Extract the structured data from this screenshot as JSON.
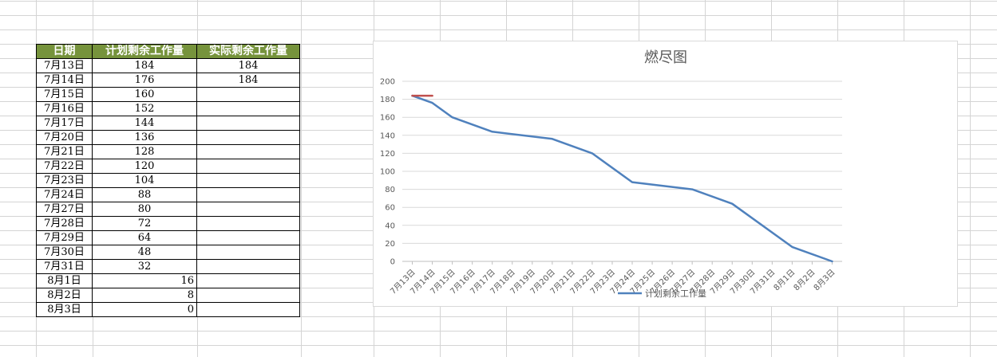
{
  "table": {
    "headers": [
      "日期",
      "计划剩余工作量",
      "实际剩余工作量"
    ],
    "rows": [
      {
        "date": "7月13日",
        "plan": "184",
        "actual": "184"
      },
      {
        "date": "7月14日",
        "plan": "176",
        "actual": "184"
      },
      {
        "date": "7月15日",
        "plan": "160",
        "actual": ""
      },
      {
        "date": "7月16日",
        "plan": "152",
        "actual": ""
      },
      {
        "date": "7月17日",
        "plan": "144",
        "actual": ""
      },
      {
        "date": "7月20日",
        "plan": "136",
        "actual": ""
      },
      {
        "date": "7月21日",
        "plan": "128",
        "actual": ""
      },
      {
        "date": "7月22日",
        "plan": "120",
        "actual": ""
      },
      {
        "date": "7月23日",
        "plan": "104",
        "actual": ""
      },
      {
        "date": "7月24日",
        "plan": "88",
        "actual": ""
      },
      {
        "date": "7月27日",
        "plan": "80",
        "actual": ""
      },
      {
        "date": "7月28日",
        "plan": "72",
        "actual": ""
      },
      {
        "date": "7月29日",
        "plan": "64",
        "actual": ""
      },
      {
        "date": "7月30日",
        "plan": "48",
        "actual": ""
      },
      {
        "date": "7月31日",
        "plan": "32",
        "actual": ""
      },
      {
        "date": "8月1日",
        "plan": "16",
        "actual": ""
      },
      {
        "date": "8月2日",
        "plan": "8",
        "actual": ""
      },
      {
        "date": "8月3日",
        "plan": "0",
        "actual": ""
      }
    ]
  },
  "chart_data": {
    "type": "line",
    "title": "燃尽图",
    "categories": [
      "7月13日",
      "7月14日",
      "7月15日",
      "7月16日",
      "7月17日",
      "7月18日",
      "7月19日",
      "7月20日",
      "7月21日",
      "7月22日",
      "7月23日",
      "7月24日",
      "7月25日",
      "7月26日",
      "7月27日",
      "7月28日",
      "7月29日",
      "7月30日",
      "7月31日",
      "8月1日",
      "8月2日",
      "8月3日"
    ],
    "series": [
      {
        "name": "计划剩余工作量",
        "color": "#4f81bd",
        "values": [
          184,
          176,
          160,
          null,
          144,
          null,
          null,
          136,
          null,
          120,
          null,
          88,
          null,
          null,
          80,
          null,
          64,
          null,
          null,
          16,
          null,
          0
        ]
      },
      {
        "name": "",
        "color": "#c0504d",
        "values": [
          184,
          184,
          null,
          null,
          null,
          null,
          null,
          null,
          null,
          null,
          null,
          null,
          null,
          null,
          null,
          null,
          null,
          null,
          null,
          null,
          null,
          null
        ]
      }
    ],
    "ylim": [
      0,
      200
    ],
    "yticks": [
      0,
      20,
      40,
      60,
      80,
      100,
      120,
      140,
      160,
      180,
      200
    ],
    "grid": true,
    "legend_position": "bottom",
    "colors": {
      "gridline": "#d9d9d9",
      "header_bg": "#76933c"
    }
  }
}
